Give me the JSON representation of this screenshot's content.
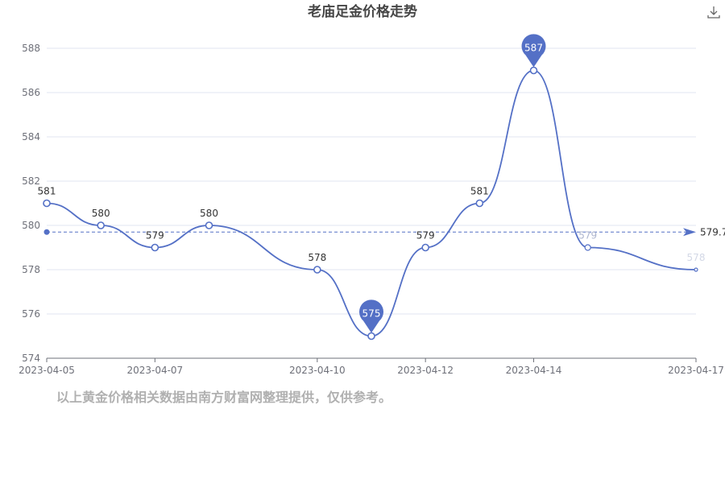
{
  "chart_data": {
    "type": "line",
    "title": "老庙足金价格走势",
    "x": [
      "2023-04-05",
      "2023-04-06",
      "2023-04-07",
      "2023-04-08",
      "2023-04-10",
      "2023-04-11",
      "2023-04-12",
      "2023-04-13",
      "2023-04-14",
      "2023-04-15",
      "2023-04-17"
    ],
    "x_tick_labels": [
      "2023-04-05",
      "2023-04-07",
      "2023-04-10",
      "2023-04-12",
      "2023-04-14",
      "2023-04-17"
    ],
    "series": [
      {
        "values": [
          581,
          580,
          579,
          580,
          578,
          575,
          579,
          581,
          587,
          579,
          578
        ]
      }
    ],
    "data_labels": [
      "581",
      "580",
      "579",
      "580",
      "578",
      "",
      "579",
      "581",
      "",
      "579",
      "578"
    ],
    "ylim": [
      574,
      588
    ],
    "yticks": [
      "574",
      "576",
      "578",
      "580",
      "582",
      "584",
      "586",
      "588"
    ],
    "max_marker": {
      "x": "2023-04-14",
      "value": 587,
      "label": "587"
    },
    "min_marker": {
      "x": "2023-04-11",
      "value": 575,
      "label": "575"
    },
    "average_line": {
      "value": 579.7,
      "label": "579.7"
    },
    "grid": true,
    "line_color": "#5470c6"
  },
  "toolbar": {
    "download_icon": "download-icon"
  },
  "note": "以上黄金价格相关数据由南方财富网整理提供，仅供参考。"
}
